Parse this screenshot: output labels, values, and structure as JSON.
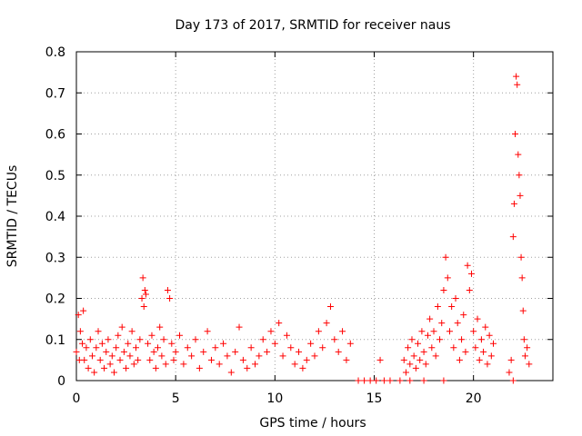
{
  "chart_data": {
    "type": "scatter",
    "title": "Day 173 of 2017, SRMTID for receiver naus",
    "xlabel": "GPS time / hours",
    "ylabel": "SRMTID / TECUs",
    "xlim": [
      0,
      24
    ],
    "ylim": [
      0,
      0.8
    ],
    "x_ticks": [
      "0",
      "5",
      "10",
      "15",
      "20"
    ],
    "y_ticks": [
      "0",
      "0.1",
      "0.2",
      "0.3",
      "0.4",
      "0.5",
      "0.6",
      "0.7",
      "0.8"
    ],
    "grid": true,
    "legend": "none",
    "marker": "plus",
    "color": "#ff0000",
    "series": [
      {
        "points": [
          [
            0.0,
            0.07
          ],
          [
            0.1,
            0.16
          ],
          [
            0.15,
            0.05
          ],
          [
            0.2,
            0.12
          ],
          [
            0.3,
            0.09
          ],
          [
            0.35,
            0.17
          ],
          [
            0.4,
            0.05
          ],
          [
            0.5,
            0.08
          ],
          [
            0.6,
            0.03
          ],
          [
            0.7,
            0.1
          ],
          [
            0.8,
            0.06
          ],
          [
            0.9,
            0.02
          ],
          [
            1.0,
            0.08
          ],
          [
            1.1,
            0.12
          ],
          [
            1.2,
            0.05
          ],
          [
            1.3,
            0.09
          ],
          [
            1.4,
            0.03
          ],
          [
            1.5,
            0.07
          ],
          [
            1.6,
            0.1
          ],
          [
            1.7,
            0.04
          ],
          [
            1.8,
            0.06
          ],
          [
            1.9,
            0.02
          ],
          [
            2.0,
            0.08
          ],
          [
            2.1,
            0.11
          ],
          [
            2.2,
            0.05
          ],
          [
            2.3,
            0.13
          ],
          [
            2.4,
            0.07
          ],
          [
            2.5,
            0.03
          ],
          [
            2.6,
            0.09
          ],
          [
            2.7,
            0.06
          ],
          [
            2.8,
            0.12
          ],
          [
            2.9,
            0.04
          ],
          [
            3.0,
            0.08
          ],
          [
            3.1,
            0.05
          ],
          [
            3.2,
            0.1
          ],
          [
            3.3,
            0.2
          ],
          [
            3.35,
            0.25
          ],
          [
            3.4,
            0.18
          ],
          [
            3.45,
            0.22
          ],
          [
            3.5,
            0.21
          ],
          [
            3.6,
            0.09
          ],
          [
            3.7,
            0.05
          ],
          [
            3.8,
            0.11
          ],
          [
            3.9,
            0.07
          ],
          [
            4.0,
            0.03
          ],
          [
            4.1,
            0.08
          ],
          [
            4.2,
            0.13
          ],
          [
            4.3,
            0.06
          ],
          [
            4.4,
            0.1
          ],
          [
            4.5,
            0.04
          ],
          [
            4.6,
            0.22
          ],
          [
            4.7,
            0.2
          ],
          [
            4.8,
            0.09
          ],
          [
            4.9,
            0.05
          ],
          [
            5.0,
            0.07
          ],
          [
            5.2,
            0.11
          ],
          [
            5.4,
            0.04
          ],
          [
            5.6,
            0.08
          ],
          [
            5.8,
            0.06
          ],
          [
            6.0,
            0.1
          ],
          [
            6.2,
            0.03
          ],
          [
            6.4,
            0.07
          ],
          [
            6.6,
            0.12
          ],
          [
            6.8,
            0.05
          ],
          [
            7.0,
            0.08
          ],
          [
            7.2,
            0.04
          ],
          [
            7.4,
            0.09
          ],
          [
            7.6,
            0.06
          ],
          [
            7.8,
            0.02
          ],
          [
            8.0,
            0.07
          ],
          [
            8.2,
            0.13
          ],
          [
            8.4,
            0.05
          ],
          [
            8.6,
            0.03
          ],
          [
            8.8,
            0.08
          ],
          [
            9.0,
            0.04
          ],
          [
            9.2,
            0.06
          ],
          [
            9.4,
            0.1
          ],
          [
            9.6,
            0.07
          ],
          [
            9.8,
            0.12
          ],
          [
            10.0,
            0.09
          ],
          [
            10.2,
            0.14
          ],
          [
            10.4,
            0.06
          ],
          [
            10.6,
            0.11
          ],
          [
            10.8,
            0.08
          ],
          [
            11.0,
            0.04
          ],
          [
            11.2,
            0.07
          ],
          [
            11.4,
            0.03
          ],
          [
            11.6,
            0.05
          ],
          [
            11.8,
            0.09
          ],
          [
            12.0,
            0.06
          ],
          [
            12.2,
            0.12
          ],
          [
            12.4,
            0.08
          ],
          [
            12.6,
            0.14
          ],
          [
            12.8,
            0.18
          ],
          [
            13.0,
            0.1
          ],
          [
            13.2,
            0.07
          ],
          [
            13.4,
            0.12
          ],
          [
            13.6,
            0.05
          ],
          [
            13.8,
            0.09
          ],
          [
            14.2,
            0.0
          ],
          [
            14.5,
            0.0
          ],
          [
            14.8,
            0.0
          ],
          [
            15.1,
            0.0
          ],
          [
            15.3,
            0.05
          ],
          [
            15.5,
            0.0
          ],
          [
            15.8,
            0.0
          ],
          [
            16.3,
            0.0
          ],
          [
            16.8,
            0.0
          ],
          [
            17.5,
            0.0
          ],
          [
            18.5,
            0.0
          ],
          [
            22.0,
            0.0
          ],
          [
            16.5,
            0.05
          ],
          [
            16.6,
            0.02
          ],
          [
            16.7,
            0.08
          ],
          [
            16.8,
            0.04
          ],
          [
            16.9,
            0.1
          ],
          [
            17.0,
            0.06
          ],
          [
            17.1,
            0.03
          ],
          [
            17.2,
            0.09
          ],
          [
            17.3,
            0.05
          ],
          [
            17.4,
            0.12
          ],
          [
            17.5,
            0.07
          ],
          [
            17.6,
            0.04
          ],
          [
            17.7,
            0.11
          ],
          [
            17.8,
            0.15
          ],
          [
            17.9,
            0.08
          ],
          [
            18.0,
            0.12
          ],
          [
            18.1,
            0.06
          ],
          [
            18.2,
            0.18
          ],
          [
            18.3,
            0.1
          ],
          [
            18.4,
            0.14
          ],
          [
            18.5,
            0.22
          ],
          [
            18.6,
            0.3
          ],
          [
            18.7,
            0.25
          ],
          [
            18.8,
            0.12
          ],
          [
            18.9,
            0.18
          ],
          [
            19.0,
            0.08
          ],
          [
            19.1,
            0.2
          ],
          [
            19.2,
            0.14
          ],
          [
            19.3,
            0.05
          ],
          [
            19.4,
            0.1
          ],
          [
            19.5,
            0.16
          ],
          [
            19.6,
            0.07
          ],
          [
            19.7,
            0.28
          ],
          [
            19.8,
            0.22
          ],
          [
            19.9,
            0.26
          ],
          [
            20.0,
            0.12
          ],
          [
            20.1,
            0.08
          ],
          [
            20.2,
            0.15
          ],
          [
            20.3,
            0.05
          ],
          [
            20.4,
            0.1
          ],
          [
            20.5,
            0.07
          ],
          [
            20.6,
            0.13
          ],
          [
            20.7,
            0.04
          ],
          [
            20.8,
            0.11
          ],
          [
            20.9,
            0.06
          ],
          [
            21.0,
            0.09
          ],
          [
            21.8,
            0.02
          ],
          [
            21.9,
            0.05
          ],
          [
            22.0,
            0.35
          ],
          [
            22.05,
            0.43
          ],
          [
            22.1,
            0.6
          ],
          [
            22.15,
            0.74
          ],
          [
            22.2,
            0.72
          ],
          [
            22.25,
            0.55
          ],
          [
            22.3,
            0.5
          ],
          [
            22.35,
            0.45
          ],
          [
            22.4,
            0.3
          ],
          [
            22.45,
            0.25
          ],
          [
            22.5,
            0.17
          ],
          [
            22.55,
            0.1
          ],
          [
            22.6,
            0.06
          ],
          [
            22.7,
            0.08
          ],
          [
            22.8,
            0.04
          ]
        ]
      }
    ]
  }
}
